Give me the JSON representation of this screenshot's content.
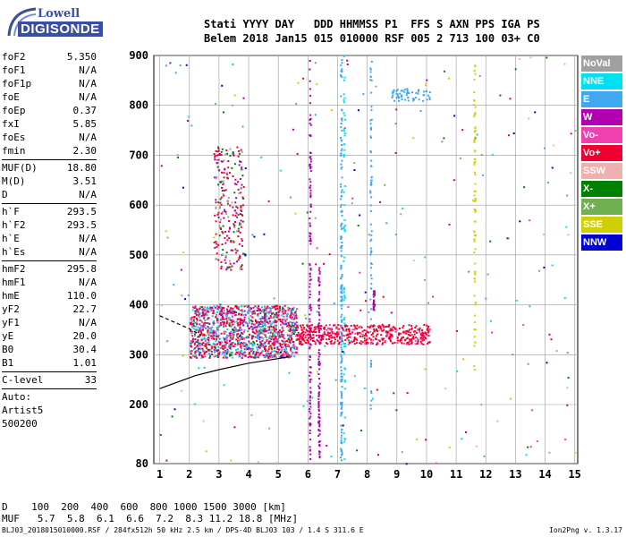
{
  "logo": {
    "line1": "Lowell",
    "line2": "DIGISONDE"
  },
  "header": {
    "labels": "Stati YYYY DAY   DDD HHMMSS P1  FFS S AXN PPS IGA PS",
    "values": "Belem 2018 Jan15 015 010000 RSF 005 2 713 100 03+ C0"
  },
  "params": [
    {
      "name": "foF2",
      "value": "5.350"
    },
    {
      "name": "foF1",
      "value": "N/A"
    },
    {
      "name": "foF1p",
      "value": "N/A"
    },
    {
      "name": "foE",
      "value": "N/A"
    },
    {
      "name": "foEp",
      "value": "0.37"
    },
    {
      "name": "fxI",
      "value": "5.85"
    },
    {
      "name": "foEs",
      "value": "N/A"
    },
    {
      "name": "fmin",
      "value": "2.30"
    },
    {
      "name": "MUF(D)",
      "value": "18.80"
    },
    {
      "name": "M(D)",
      "value": "3.51"
    },
    {
      "name": "D",
      "value": "N/A"
    },
    {
      "name": "h`F",
      "value": "293.5"
    },
    {
      "name": "h`F2",
      "value": "293.5"
    },
    {
      "name": "h`E",
      "value": "N/A"
    },
    {
      "name": "h`Es",
      "value": "N/A"
    },
    {
      "name": "hmF2",
      "value": "295.8"
    },
    {
      "name": "hmF1",
      "value": "N/A"
    },
    {
      "name": "hmE",
      "value": "110.0"
    },
    {
      "name": "yF2",
      "value": "22.7"
    },
    {
      "name": "yF1",
      "value": "N/A"
    },
    {
      "name": "yE",
      "value": "20.0"
    },
    {
      "name": "B0",
      "value": "30.4"
    },
    {
      "name": "B1",
      "value": "1.01"
    },
    {
      "name": "C-level",
      "value": "33"
    }
  ],
  "auto": {
    "line1": "Auto:",
    "line2": "Artist5",
    "line3": "500200"
  },
  "legend": [
    {
      "label": "NoVal",
      "color": "#a0a0a0"
    },
    {
      "label": "NNE",
      "color": "#00e0f0"
    },
    {
      "label": "E",
      "color": "#40a8f0"
    },
    {
      "label": "W",
      "color": "#b000b0"
    },
    {
      "label": "Vo-",
      "color": "#f040b0"
    },
    {
      "label": "Vo+",
      "color": "#f00030"
    },
    {
      "label": "SSW",
      "color": "#f0b0b0"
    },
    {
      "label": "X-",
      "color": "#008000"
    },
    {
      "label": "X+",
      "color": "#70b050"
    },
    {
      "label": "SSE",
      "color": "#d0d000"
    },
    {
      "label": "NNW",
      "color": "#0000d0"
    }
  ],
  "bottom": {
    "d_row": "D    100  200  400  600  800 1000 1500 3000 [km]",
    "muf_row": "MUF   5.7  5.8  6.1  6.6  7.2  8.3 11.2 18.8 [MHz]"
  },
  "footer": {
    "file": "BLJ03_2018015010000.RSF / 284fx512h 50 kHz 2.5 km / DPS-4D BLJ03 103 / 1.4 S 311.6 E",
    "version": "Ion2Png v. 1.3.17"
  },
  "chart_data": {
    "type": "scatter",
    "title": "",
    "xlabel": "",
    "ylabel": "",
    "xlim": [
      0.8,
      15.1
    ],
    "ylim": [
      80,
      900
    ],
    "x_ticks": [
      1,
      2,
      3,
      4,
      5,
      6,
      7,
      8,
      9,
      10,
      11,
      12,
      13,
      14,
      15
    ],
    "y_ticks": [
      80,
      200,
      300,
      400,
      500,
      600,
      700,
      800,
      900
    ],
    "grid": true,
    "legend_placement": "right",
    "ionogram_trace_clusters": [
      {
        "freq_range": [
          2.0,
          5.6
        ],
        "height_range": [
          295,
          400
        ],
        "note": "dense F-region echoes"
      },
      {
        "freq_range": [
          5.6,
          10.1
        ],
        "height_range": [
          320,
          370
        ],
        "note": "Vo+ trace"
      },
      {
        "freq_range": [
          2.8,
          3.8
        ],
        "height_range": [
          480,
          720
        ],
        "note": "multi-hop echoes"
      }
    ],
    "profile_curve": [
      [
        1.0,
        232
      ],
      [
        1.6,
        245
      ],
      [
        2.2,
        258
      ],
      [
        3.0,
        270
      ],
      [
        4.0,
        283
      ],
      [
        5.0,
        292
      ],
      [
        5.35,
        296
      ]
    ],
    "dashed_curve": [
      [
        1.0,
        378
      ],
      [
        1.5,
        365
      ],
      [
        2.0,
        352
      ],
      [
        2.4,
        338
      ]
    ]
  }
}
